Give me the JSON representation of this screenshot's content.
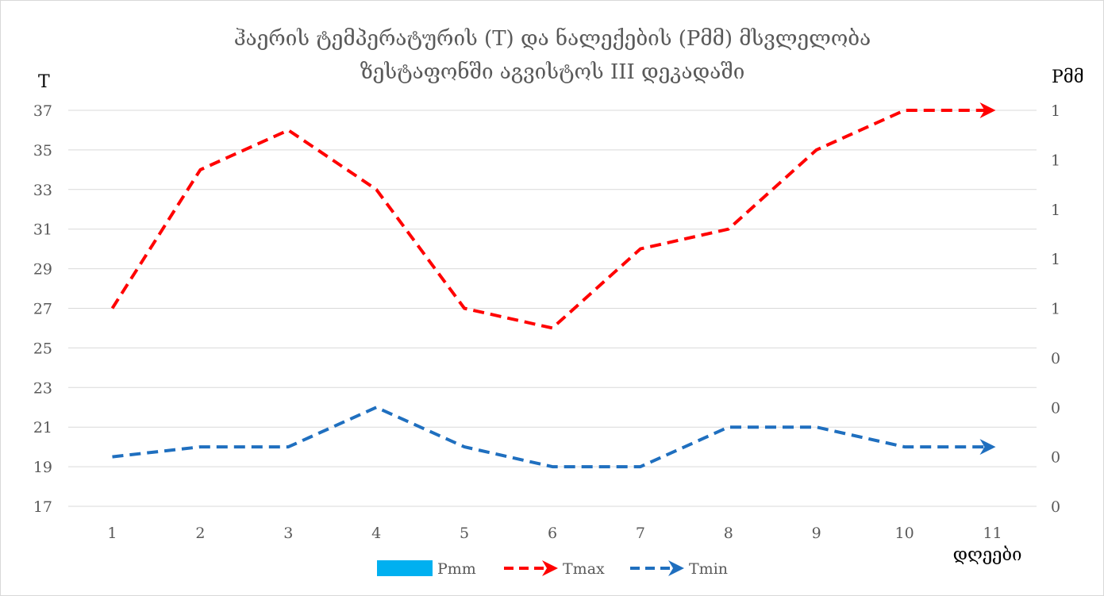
{
  "chart_data": {
    "type": "line",
    "title": "ჰაერის ტემპერატურის (T) და ნალექების (Pმმ)  მსვლელობა",
    "subtitle": "ზესტაფონში აგვისტოს III დეკადაში",
    "ylabel_left": "T",
    "ylabel_right": "Pმმ",
    "xlabel": "დღეები",
    "categories": [
      "1",
      "2",
      "3",
      "4",
      "5",
      "6",
      "7",
      "8",
      "9",
      "10",
      "11"
    ],
    "ylim": [
      17,
      37
    ],
    "yticks": [
      "17",
      "19",
      "21",
      "23",
      "25",
      "27",
      "29",
      "31",
      "33",
      "35",
      "37"
    ],
    "y2ticks": [
      "0",
      "0",
      "0",
      "0",
      "1",
      "1",
      "1",
      "1",
      "1"
    ],
    "grid": true,
    "legend_position": "bottom",
    "series": [
      {
        "name": "Pmm",
        "kind": "bar",
        "color": "#00b0f0",
        "values": [
          0,
          0,
          0,
          0,
          0,
          0,
          0,
          0,
          0,
          0,
          0
        ]
      },
      {
        "name": "Tmax",
        "kind": "line",
        "color": "#ff0000",
        "dash": true,
        "values": [
          27,
          34,
          36,
          33,
          27,
          26,
          30,
          31,
          35,
          37,
          37
        ]
      },
      {
        "name": "Tmin",
        "kind": "line",
        "color": "#1f6fbf",
        "dash": true,
        "values": [
          19.5,
          20,
          20,
          22,
          20,
          19,
          19,
          21,
          21,
          20,
          20
        ]
      }
    ]
  }
}
